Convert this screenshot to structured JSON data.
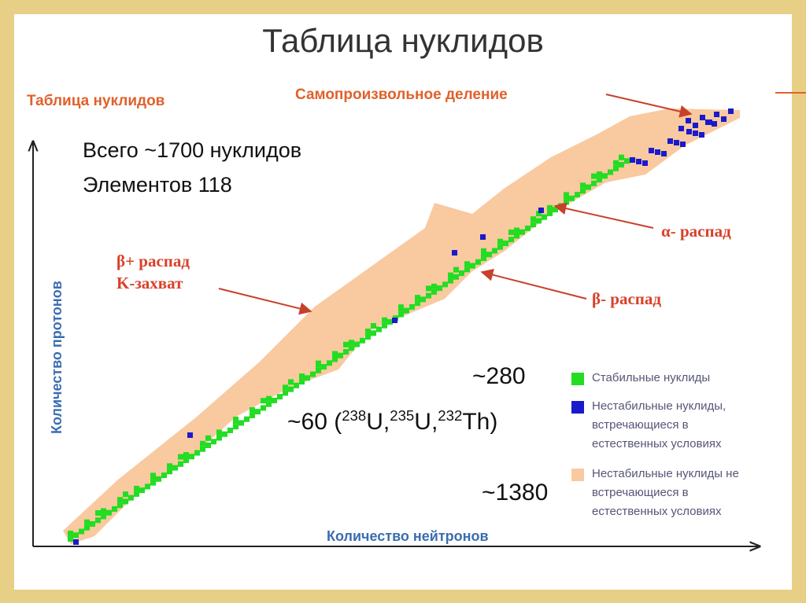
{
  "title": "Таблица нуклидов",
  "chart_heading": "Таблица нуклидов",
  "annotations": {
    "fission": "Самопроизвольное деление",
    "total": "Всего ~1700 нуклидов",
    "elements": "Элементов 118",
    "beta_plus": "β+ распад",
    "k_capture": "K-захват",
    "alpha": "α- распад",
    "beta_minus": "β- распад"
  },
  "axes": {
    "y": "Количество протонов",
    "x": "Количество нейтронов"
  },
  "counts": {
    "stable": "~280",
    "natural": {
      "prefix": "~60 (",
      "parts": [
        {
          "sup": "238",
          "text": "U,"
        },
        {
          "sup": "235",
          "text": "U,"
        },
        {
          "sup": "232",
          "text": "Th)"
        }
      ]
    },
    "artificial": "~1380"
  },
  "legend": [
    {
      "lines": [
        "Стабильные нуклиды"
      ]
    },
    {
      "lines": [
        "Нестабильные нуклиды,",
        "встречающиеся в",
        "естественных условиях"
      ]
    },
    {
      "lines": [
        "Нестабильные нуклиды не",
        "встречающиеся в",
        "естественных условиях"
      ]
    }
  ]
}
